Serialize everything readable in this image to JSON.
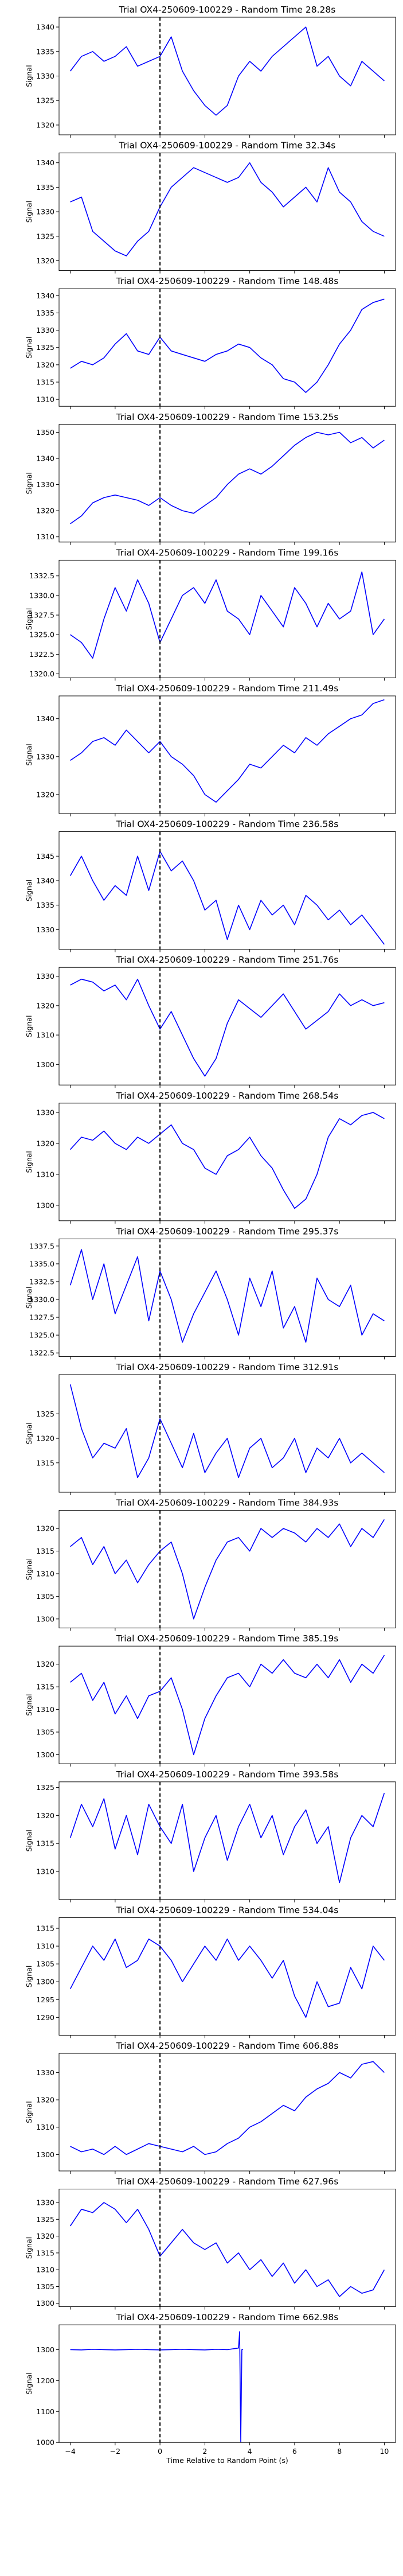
{
  "figure": {
    "xlabel": "Time Relative to Random Point (s)",
    "ylabel": "Signal",
    "xlim": [
      -4.5,
      10.5
    ],
    "xticks": [
      -4,
      -2,
      0,
      2,
      4,
      6,
      8,
      10
    ],
    "series_color": "#0000ff",
    "marker_line": {
      "x": 0,
      "color": "#000000",
      "style": "dashed"
    }
  },
  "chart_data": [
    {
      "type": "line",
      "title": "Trial OX4-250609-100229 - Random Time 28.28s",
      "ylabel": "Signal",
      "ylim": [
        1318,
        1342
      ],
      "yticks": [
        1320,
        1325,
        1330,
        1335,
        1340
      ],
      "x": [
        -4,
        -3.5,
        -3,
        -2.5,
        -2,
        -1.5,
        -1,
        -0.5,
        0,
        0.5,
        1,
        1.5,
        2,
        2.5,
        3,
        3.5,
        4,
        4.5,
        5,
        5.5,
        6,
        6.5,
        7,
        7.5,
        8,
        8.5,
        9,
        9.5,
        10
      ],
      "y": [
        1331,
        1334,
        1335,
        1333,
        1334,
        1336,
        1332,
        1333,
        1334,
        1338,
        1331,
        1327,
        1324,
        1322,
        1324,
        1330,
        1333,
        1331,
        1334,
        1336,
        1338,
        1340,
        1332,
        1334,
        1330,
        1328,
        1333,
        1331,
        1329
      ]
    },
    {
      "type": "line",
      "title": "Trial OX4-250609-100229 - Random Time 32.34s",
      "ylabel": "Signal",
      "ylim": [
        1318,
        1342
      ],
      "yticks": [
        1320,
        1325,
        1330,
        1335,
        1340
      ],
      "x": [
        -4,
        -3.5,
        -3,
        -2.5,
        -2,
        -1.5,
        -1,
        -0.5,
        0,
        0.5,
        1,
        1.5,
        2,
        2.5,
        3,
        3.5,
        4,
        4.5,
        5,
        5.5,
        6,
        6.5,
        7,
        7.5,
        8,
        8.5,
        9,
        9.5,
        10
      ],
      "y": [
        1332,
        1333,
        1326,
        1324,
        1322,
        1321,
        1324,
        1326,
        1331,
        1335,
        1337,
        1339,
        1338,
        1337,
        1336,
        1337,
        1340,
        1336,
        1334,
        1331,
        1333,
        1335,
        1332,
        1339,
        1334,
        1332,
        1328,
        1326,
        1325
      ]
    },
    {
      "type": "line",
      "title": "Trial OX4-250609-100229 - Random Time 148.48s",
      "ylabel": "Signal",
      "ylim": [
        1308,
        1342
      ],
      "yticks": [
        1310,
        1315,
        1320,
        1325,
        1330,
        1335,
        1340
      ],
      "x": [
        -4,
        -3.5,
        -3,
        -2.5,
        -2,
        -1.5,
        -1,
        -0.5,
        0,
        0.5,
        1,
        1.5,
        2,
        2.5,
        3,
        3.5,
        4,
        4.5,
        5,
        5.5,
        6,
        6.5,
        7,
        7.5,
        8,
        8.5,
        9,
        9.5,
        10
      ],
      "y": [
        1319,
        1321,
        1320,
        1322,
        1326,
        1329,
        1324,
        1323,
        1328,
        1324,
        1323,
        1322,
        1321,
        1323,
        1324,
        1326,
        1325,
        1322,
        1320,
        1316,
        1315,
        1312,
        1315,
        1320,
        1326,
        1330,
        1336,
        1338,
        1339
      ]
    },
    {
      "type": "line",
      "title": "Trial OX4-250609-100229 - Random Time 153.25s",
      "ylabel": "Signal",
      "ylim": [
        1308,
        1353
      ],
      "yticks": [
        1310,
        1320,
        1330,
        1340,
        1350
      ],
      "x": [
        -4,
        -3.5,
        -3,
        -2.5,
        -2,
        -1.5,
        -1,
        -0.5,
        0,
        0.5,
        1,
        1.5,
        2,
        2.5,
        3,
        3.5,
        4,
        4.5,
        5,
        5.5,
        6,
        6.5,
        7,
        7.5,
        8,
        8.5,
        9,
        9.5,
        10
      ],
      "y": [
        1315,
        1318,
        1323,
        1325,
        1326,
        1325,
        1324,
        1322,
        1325,
        1322,
        1320,
        1319,
        1322,
        1325,
        1330,
        1334,
        1336,
        1334,
        1337,
        1341,
        1345,
        1348,
        1350,
        1349,
        1350,
        1346,
        1348,
        1344,
        1347
      ]
    },
    {
      "type": "line",
      "title": "Trial OX4-250609-100229 - Random Time 199.16s",
      "ylabel": "Signal",
      "ylim": [
        1319.5,
        1334.5
      ],
      "yticks": [
        1320.0,
        1322.5,
        1325.0,
        1327.5,
        1330.0,
        1332.5
      ],
      "x": [
        -4,
        -3.5,
        -3,
        -2.5,
        -2,
        -1.5,
        -1,
        -0.5,
        0,
        0.5,
        1,
        1.5,
        2,
        2.5,
        3,
        3.5,
        4,
        4.5,
        5,
        5.5,
        6,
        6.5,
        7,
        7.5,
        8,
        8.5,
        9,
        9.5,
        10
      ],
      "y": [
        1325,
        1324,
        1322,
        1327,
        1331,
        1328,
        1332,
        1329,
        1324,
        1327,
        1330,
        1331,
        1329,
        1332,
        1328,
        1327,
        1325,
        1330,
        1328,
        1326,
        1331,
        1329,
        1326,
        1329,
        1327,
        1328,
        1333,
        1325,
        1327
      ]
    },
    {
      "type": "line",
      "title": "Trial OX4-250609-100229 - Random Time 211.49s",
      "ylabel": "Signal",
      "ylim": [
        1315,
        1346
      ],
      "yticks": [
        1320,
        1330,
        1340
      ],
      "x": [
        -4,
        -3.5,
        -3,
        -2.5,
        -2,
        -1.5,
        -1,
        -0.5,
        0,
        0.5,
        1,
        1.5,
        2,
        2.5,
        3,
        3.5,
        4,
        4.5,
        5,
        5.5,
        6,
        6.5,
        7,
        7.5,
        8,
        8.5,
        9,
        9.5,
        10
      ],
      "y": [
        1329,
        1331,
        1334,
        1335,
        1333,
        1337,
        1334,
        1331,
        1334,
        1330,
        1328,
        1325,
        1320,
        1318,
        1321,
        1324,
        1328,
        1327,
        1330,
        1333,
        1331,
        1335,
        1333,
        1336,
        1338,
        1340,
        1341,
        1344,
        1345
      ]
    },
    {
      "type": "line",
      "title": "Trial OX4-250609-100229 - Random Time 236.58s",
      "ylabel": "Signal",
      "ylim": [
        1326,
        1350
      ],
      "yticks": [
        1330,
        1335,
        1340,
        1345
      ],
      "x": [
        -4,
        -3.5,
        -3,
        -2.5,
        -2,
        -1.5,
        -1,
        -0.5,
        0,
        0.5,
        1,
        1.5,
        2,
        2.5,
        3,
        3.5,
        4,
        4.5,
        5,
        5.5,
        6,
        6.5,
        7,
        7.5,
        8,
        8.5,
        9,
        9.5,
        10
      ],
      "y": [
        1341,
        1345,
        1340,
        1336,
        1339,
        1337,
        1345,
        1338,
        1346,
        1342,
        1344,
        1340,
        1334,
        1336,
        1328,
        1335,
        1330,
        1336,
        1333,
        1335,
        1331,
        1337,
        1335,
        1332,
        1334,
        1331,
        1333,
        1330,
        1327
      ]
    },
    {
      "type": "line",
      "title": "Trial OX4-250609-100229 - Random Time 251.76s",
      "ylabel": "Signal",
      "ylim": [
        1293,
        1333
      ],
      "yticks": [
        1300,
        1310,
        1320,
        1330
      ],
      "x": [
        -4,
        -3.5,
        -3,
        -2.5,
        -2,
        -1.5,
        -1,
        -0.5,
        0,
        0.5,
        1,
        1.5,
        2,
        2.5,
        3,
        3.5,
        4,
        4.5,
        5,
        5.5,
        6,
        6.5,
        7,
        7.5,
        8,
        8.5,
        9,
        9.5,
        10
      ],
      "y": [
        1327,
        1329,
        1328,
        1325,
        1327,
        1322,
        1329,
        1320,
        1312,
        1318,
        1310,
        1302,
        1296,
        1302,
        1314,
        1322,
        1319,
        1316,
        1320,
        1324,
        1318,
        1312,
        1315,
        1318,
        1324,
        1320,
        1322,
        1320,
        1321
      ]
    },
    {
      "type": "line",
      "title": "Trial OX4-250609-100229 - Random Time 268.54s",
      "ylabel": "Signal",
      "ylim": [
        1295,
        1333
      ],
      "yticks": [
        1300,
        1310,
        1320,
        1330
      ],
      "x": [
        -4,
        -3.5,
        -3,
        -2.5,
        -2,
        -1.5,
        -1,
        -0.5,
        0,
        0.5,
        1,
        1.5,
        2,
        2.5,
        3,
        3.5,
        4,
        4.5,
        5,
        5.5,
        6,
        6.5,
        7,
        7.5,
        8,
        8.5,
        9,
        9.5,
        10
      ],
      "y": [
        1318,
        1322,
        1321,
        1324,
        1320,
        1318,
        1322,
        1320,
        1323,
        1326,
        1320,
        1318,
        1312,
        1310,
        1316,
        1318,
        1322,
        1316,
        1312,
        1305,
        1299,
        1302,
        1310,
        1322,
        1328,
        1326,
        1329,
        1330,
        1328
      ]
    },
    {
      "type": "line",
      "title": "Trial OX4-250609-100229 - Random Time 295.37s",
      "ylabel": "Signal",
      "ylim": [
        1322,
        1338.5
      ],
      "yticks": [
        1322.5,
        1325.0,
        1327.5,
        1330.0,
        1332.5,
        1335.0,
        1337.5
      ],
      "x": [
        -4,
        -3.5,
        -3,
        -2.5,
        -2,
        -1.5,
        -1,
        -0.5,
        0,
        0.5,
        1,
        1.5,
        2,
        2.5,
        3,
        3.5,
        4,
        4.5,
        5,
        5.5,
        6,
        6.5,
        7,
        7.5,
        8,
        8.5,
        9,
        9.5,
        10
      ],
      "y": [
        1332,
        1337,
        1330,
        1335,
        1328,
        1332,
        1336,
        1327,
        1334,
        1330,
        1324,
        1328,
        1331,
        1334,
        1330,
        1325,
        1333,
        1329,
        1334,
        1326,
        1329,
        1324,
        1333,
        1330,
        1329,
        1332,
        1325,
        1328,
        1327
      ]
    },
    {
      "type": "line",
      "title": "Trial OX4-250609-100229 - Random Time 312.91s",
      "ylabel": "Signal",
      "ylim": [
        1309,
        1333
      ],
      "yticks": [
        1315,
        1320,
        1325
      ],
      "x": [
        -4,
        -3.5,
        -3,
        -2.5,
        -2,
        -1.5,
        -1,
        -0.5,
        0,
        0.5,
        1,
        1.5,
        2,
        2.5,
        3,
        3.5,
        4,
        4.5,
        5,
        5.5,
        6,
        6.5,
        7,
        7.5,
        8,
        8.5,
        9,
        9.5,
        10
      ],
      "y": [
        1331,
        1322,
        1316,
        1319,
        1318,
        1322,
        1312,
        1316,
        1324,
        1319,
        1314,
        1321,
        1313,
        1317,
        1320,
        1312,
        1318,
        1320,
        1314,
        1316,
        1320,
        1313,
        1318,
        1316,
        1320,
        1315,
        1317,
        1315,
        1313
      ]
    },
    {
      "type": "line",
      "title": "Trial OX4-250609-100229 - Random Time 384.93s",
      "ylabel": "Signal",
      "ylim": [
        1298,
        1324
      ],
      "yticks": [
        1300,
        1305,
        1310,
        1315,
        1320
      ],
      "x": [
        -4,
        -3.5,
        -3,
        -2.5,
        -2,
        -1.5,
        -1,
        -0.5,
        0,
        0.5,
        1,
        1.5,
        2,
        2.5,
        3,
        3.5,
        4,
        4.5,
        5,
        5.5,
        6,
        6.5,
        7,
        7.5,
        8,
        8.5,
        9,
        9.5,
        10
      ],
      "y": [
        1316,
        1318,
        1312,
        1316,
        1310,
        1313,
        1308,
        1312,
        1315,
        1317,
        1310,
        1300,
        1307,
        1313,
        1317,
        1318,
        1315,
        1320,
        1318,
        1320,
        1319,
        1317,
        1320,
        1318,
        1321,
        1316,
        1320,
        1318,
        1322
      ]
    },
    {
      "type": "line",
      "title": "Trial OX4-250609-100229 - Random Time 385.19s",
      "ylabel": "Signal",
      "ylim": [
        1298,
        1324
      ],
      "yticks": [
        1300,
        1305,
        1310,
        1315,
        1320
      ],
      "x": [
        -4,
        -3.5,
        -3,
        -2.5,
        -2,
        -1.5,
        -1,
        -0.5,
        0,
        0.5,
        1,
        1.5,
        2,
        2.5,
        3,
        3.5,
        4,
        4.5,
        5,
        5.5,
        6,
        6.5,
        7,
        7.5,
        8,
        8.5,
        9,
        9.5,
        10
      ],
      "y": [
        1316,
        1318,
        1312,
        1316,
        1309,
        1313,
        1308,
        1313,
        1314,
        1317,
        1310,
        1300,
        1308,
        1313,
        1317,
        1318,
        1315,
        1320,
        1318,
        1321,
        1318,
        1317,
        1320,
        1317,
        1321,
        1316,
        1320,
        1318,
        1322
      ]
    },
    {
      "type": "line",
      "title": "Trial OX4-250609-100229 - Random Time 393.58s",
      "ylabel": "Signal",
      "ylim": [
        1305,
        1326
      ],
      "yticks": [
        1310,
        1315,
        1320,
        1325
      ],
      "x": [
        -4,
        -3.5,
        -3,
        -2.5,
        -2,
        -1.5,
        -1,
        -0.5,
        0,
        0.5,
        1,
        1.5,
        2,
        2.5,
        3,
        3.5,
        4,
        4.5,
        5,
        5.5,
        6,
        6.5,
        7,
        7.5,
        8,
        8.5,
        9,
        9.5,
        10
      ],
      "y": [
        1316,
        1322,
        1318,
        1323,
        1314,
        1320,
        1313,
        1322,
        1318,
        1315,
        1322,
        1310,
        1316,
        1320,
        1312,
        1318,
        1322,
        1316,
        1320,
        1313,
        1318,
        1321,
        1315,
        1318,
        1308,
        1316,
        1320,
        1318,
        1324
      ]
    },
    {
      "type": "line",
      "title": "Trial OX4-250609-100229 - Random Time 534.04s",
      "ylabel": "Signal",
      "ylim": [
        1285,
        1318
      ],
      "yticks": [
        1290,
        1295,
        1300,
        1305,
        1310,
        1315
      ],
      "x": [
        -4,
        -3.5,
        -3,
        -2.5,
        -2,
        -1.5,
        -1,
        -0.5,
        0,
        0.5,
        1,
        1.5,
        2,
        2.5,
        3,
        3.5,
        4,
        4.5,
        5,
        5.5,
        6,
        6.5,
        7,
        7.5,
        8,
        8.5,
        9,
        9.5,
        10
      ],
      "y": [
        1298,
        1304,
        1310,
        1306,
        1312,
        1304,
        1306,
        1312,
        1310,
        1306,
        1300,
        1305,
        1310,
        1306,
        1312,
        1306,
        1310,
        1306,
        1301,
        1306,
        1296,
        1290,
        1300,
        1293,
        1294,
        1304,
        1298,
        1310,
        1306
      ]
    },
    {
      "type": "line",
      "title": "Trial OX4-250609-100229 - Random Time 606.88s",
      "ylabel": "Signal",
      "ylim": [
        1294,
        1337
      ],
      "yticks": [
        1300,
        1310,
        1320,
        1330
      ],
      "x": [
        -4,
        -3.5,
        -3,
        -2.5,
        -2,
        -1.5,
        -1,
        -0.5,
        0,
        0.5,
        1,
        1.5,
        2,
        2.5,
        3,
        3.5,
        4,
        4.5,
        5,
        5.5,
        6,
        6.5,
        7,
        7.5,
        8,
        8.5,
        9,
        9.5,
        10
      ],
      "y": [
        1303,
        1301,
        1302,
        1300,
        1303,
        1300,
        1302,
        1304,
        1303,
        1302,
        1301,
        1303,
        1300,
        1301,
        1304,
        1306,
        1310,
        1312,
        1315,
        1318,
        1316,
        1321,
        1324,
        1326,
        1330,
        1328,
        1333,
        1334,
        1330
      ]
    },
    {
      "type": "line",
      "title": "Trial OX4-250609-100229 - Random Time 627.96s",
      "ylabel": "Signal",
      "ylim": [
        1299,
        1334
      ],
      "yticks": [
        1300,
        1305,
        1310,
        1315,
        1320,
        1325,
        1330
      ],
      "x": [
        -4,
        -3.5,
        -3,
        -2.5,
        -2,
        -1.5,
        -1,
        -0.5,
        0,
        0.5,
        1,
        1.5,
        2,
        2.5,
        3,
        3.5,
        4,
        4.5,
        5,
        5.5,
        6,
        6.5,
        7,
        7.5,
        8,
        8.5,
        9,
        9.5,
        10
      ],
      "y": [
        1323,
        1328,
        1327,
        1330,
        1328,
        1324,
        1328,
        1322,
        1314,
        1318,
        1322,
        1318,
        1316,
        1318,
        1312,
        1315,
        1310,
        1313,
        1308,
        1312,
        1306,
        1310,
        1305,
        1307,
        1302,
        1305,
        1303,
        1304,
        1310
      ]
    },
    {
      "type": "line",
      "title": "Trial OX4-250609-100229 - Random Time 662.98s",
      "ylabel": "Signal",
      "ylim": [
        1000,
        1380
      ],
      "yticks": [
        1000,
        1100,
        1200,
        1300
      ],
      "x": [
        -4,
        -3.5,
        -3,
        -2.5,
        -2,
        -1.5,
        -1,
        -0.5,
        0,
        0.5,
        1,
        1.5,
        2,
        2.5,
        3,
        3.5,
        3.55,
        3.6,
        3.65,
        3.7
      ],
      "y": [
        1300,
        1299,
        1301,
        1300,
        1299,
        1300,
        1301,
        1300,
        1299,
        1300,
        1301,
        1300,
        1299,
        1301,
        1300,
        1305,
        1358,
        1002,
        1300,
        1301
      ]
    }
  ]
}
